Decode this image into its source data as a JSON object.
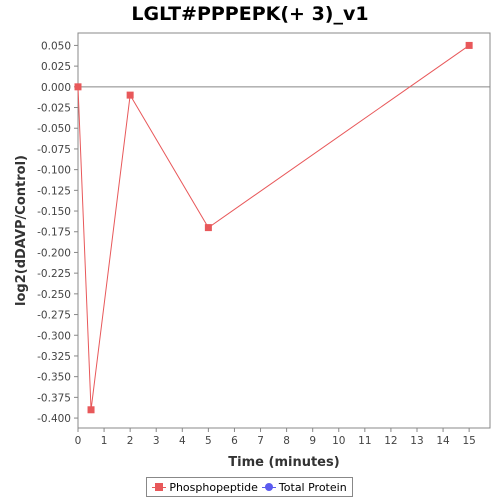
{
  "colors": {
    "phosphopeptide": "#e8585a",
    "total_protein": "#5b5bef",
    "axis": "#888888",
    "zero_line": "#888888",
    "background": "#ffffff"
  },
  "legend": {
    "items": [
      {
        "label": "Phosphopeptide",
        "marker": "square"
      },
      {
        "label": "Total Protein",
        "marker": "circle"
      }
    ]
  },
  "chart_data": {
    "type": "line",
    "title": "LGLT#PPPEPK(+ 3)_v1",
    "xlabel": "Time (minutes)",
    "ylabel": "log2(dDAVP/Control)",
    "xlim": [
      0,
      15.8
    ],
    "ylim": [
      -0.412,
      0.065
    ],
    "x_ticks": [
      0,
      1,
      2,
      3,
      4,
      5,
      6,
      7,
      8,
      9,
      10,
      11,
      12,
      13,
      14,
      15
    ],
    "y_ticks": [
      0.05,
      0.025,
      0.0,
      -0.025,
      -0.05,
      -0.075,
      -0.1,
      -0.125,
      -0.15,
      -0.175,
      -0.2,
      -0.225,
      -0.25,
      -0.275,
      -0.3,
      -0.325,
      -0.35,
      -0.375,
      -0.4
    ],
    "grid": false,
    "legend_position": "bottom",
    "series": [
      {
        "name": "Phosphopeptide",
        "marker": "square",
        "x": [
          0,
          0.5,
          2,
          5,
          15
        ],
        "y": [
          0.0,
          -0.39,
          -0.01,
          -0.17,
          0.05
        ]
      },
      {
        "name": "Total Protein",
        "marker": "circle",
        "x": [],
        "y": []
      }
    ]
  }
}
